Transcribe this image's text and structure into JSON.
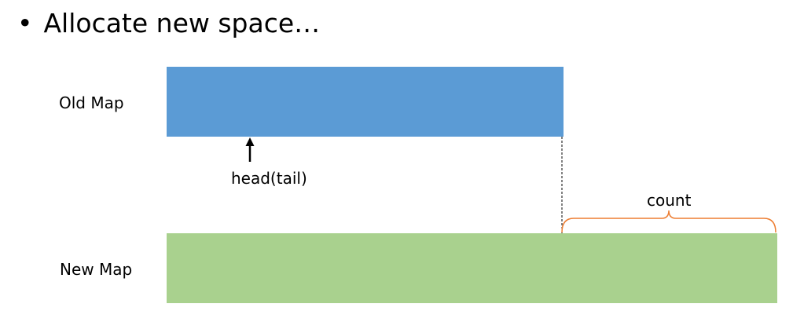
{
  "slide": {
    "bullet": "•",
    "heading": "Allocate new space…"
  },
  "diagram": {
    "old_map_label": "Old Map",
    "new_map_label": "New Map",
    "pointer_label": "head(tail)",
    "count_label": "count",
    "colors": {
      "old_map": "#5b9bd5",
      "new_map": "#a9d18e",
      "brace": "#ed7d31",
      "arrow": "#000000"
    }
  }
}
